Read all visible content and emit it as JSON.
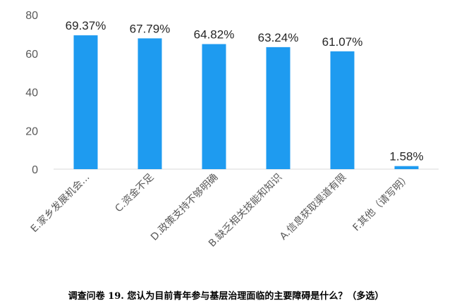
{
  "chart_data": {
    "type": "bar",
    "categories": [
      "E.家乡发展机会...",
      "C.资金不足",
      "D.政策支持不够明确",
      "B.缺乏相关技能和知识",
      "A.信息获取渠道有限",
      "F.其他（请写明）"
    ],
    "values": [
      69.37,
      67.79,
      64.82,
      63.24,
      61.07,
      1.58
    ],
    "data_labels": [
      "69.37%",
      "67.79%",
      "64.82%",
      "63.24%",
      "61.07%",
      "1.58%"
    ],
    "ylim": [
      0,
      80
    ],
    "yticks": [
      "0",
      "20",
      "40",
      "60",
      "80"
    ],
    "grid": false,
    "color": "#1E9BF0"
  },
  "caption": "调查问卷 19. 您认为目前青年参与基层治理面临的主要障碍是什么？（多选）"
}
